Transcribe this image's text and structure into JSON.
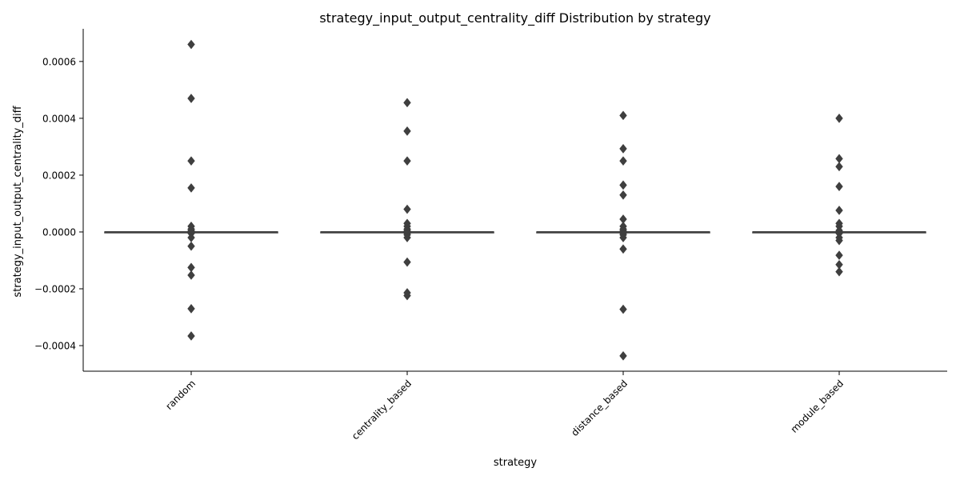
{
  "chart_data": {
    "type": "box",
    "title": "strategy_input_output_centrality_diff Distribution by strategy",
    "xlabel": "strategy",
    "ylabel": "strategy_input_output_centrality_diff",
    "ylim": [
      -0.00049,
      0.000715
    ],
    "yticks": [
      -0.0004,
      -0.0002,
      0.0,
      0.0002,
      0.0004,
      0.0006
    ],
    "ytick_labels": [
      "−0.0004",
      "−0.0002",
      "0.0000",
      "0.0002",
      "0.0004",
      "0.0006"
    ],
    "grid": false,
    "legend": "none",
    "colors": {
      "box_line": "#3f3f3f",
      "outlier": "#3f3f3f",
      "axis": "#000000"
    },
    "categories": [
      "random",
      "centrality_based",
      "distance_based",
      "module_based"
    ],
    "series": [
      {
        "category": "random",
        "q1": 0.0,
        "median": 0.0,
        "q3": 0.0,
        "whisker_low": 0.0,
        "whisker_high": 0.0,
        "outliers": [
          0.00066,
          0.00047,
          0.00025,
          0.000155,
          2e-05,
          1e-05,
          5e-06,
          -5e-06,
          -2e-05,
          -5e-05,
          -0.000125,
          -0.000152,
          -0.00027,
          -0.000366
        ]
      },
      {
        "category": "centrality_based",
        "q1": 0.0,
        "median": 0.0,
        "q3": 0.0,
        "whisker_low": 0.0,
        "whisker_high": 0.0,
        "outliers": [
          0.000455,
          0.000355,
          0.00025,
          8e-05,
          3e-05,
          2e-05,
          1e-05,
          5e-06,
          -5e-06,
          -1e-05,
          -2e-05,
          -0.000106,
          -0.000214,
          -0.000224
        ]
      },
      {
        "category": "distance_based",
        "q1": 0.0,
        "median": 0.0,
        "q3": 0.0,
        "whisker_low": 0.0,
        "whisker_high": 0.0,
        "outliers": [
          0.00041,
          0.000293,
          0.00025,
          0.000165,
          0.00013,
          4.5e-05,
          2e-05,
          1e-05,
          5e-06,
          -5e-06,
          -1e-05,
          -2e-05,
          -6e-05,
          -0.000272,
          -0.000436
        ]
      },
      {
        "category": "module_based",
        "q1": 0.0,
        "median": 0.0,
        "q3": 0.0,
        "whisker_low": 0.0,
        "whisker_high": 0.0,
        "outliers": [
          0.0004,
          0.000258,
          0.00023,
          0.00016,
          7.6e-05,
          3e-05,
          2e-05,
          5e-06,
          -5e-06,
          -2e-05,
          -3e-05,
          -8.2e-05,
          -0.000115,
          -0.00014
        ]
      }
    ]
  }
}
